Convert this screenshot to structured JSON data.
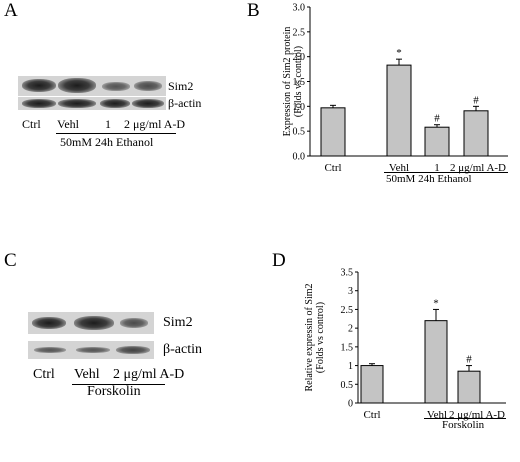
{
  "panel_A": {
    "letter": "A",
    "band_labels": [
      "Sim2",
      "β-actin"
    ],
    "lane_labels": [
      "Ctrl",
      "Vehl",
      "1",
      "2 μg/ml A-D"
    ],
    "treatment": "50mM 24h Ethanol",
    "sim2_band_intensity": [
      0.85,
      1.0,
      0.55,
      0.65
    ],
    "actin_band_intensity": [
      0.9,
      0.95,
      0.9,
      0.9
    ]
  },
  "panel_B": {
    "letter": "B",
    "treatment": "50mM 24h Ethanol",
    "chart_data": {
      "type": "bar",
      "categories": [
        "Ctrl",
        "Vehl",
        "1",
        "2 μg/ml A-D"
      ],
      "values": [
        0.97,
        1.83,
        0.58,
        0.91
      ],
      "errors": [
        0.05,
        0.12,
        0.05,
        0.09
      ],
      "significance": [
        "",
        "*",
        "#",
        "#"
      ],
      "ylabel": "Expression of Sim2 protein (Folds vs control)",
      "ylim": [
        0,
        3.0
      ],
      "yticks": [
        "0.0",
        "0.5",
        "1.0",
        "1.5",
        "2.0",
        "2.5",
        "3.0"
      ],
      "grid": false
    }
  },
  "panel_C": {
    "letter": "C",
    "band_labels": [
      "Sim2",
      "β-actin"
    ],
    "lane_labels": [
      "Ctrl",
      "Vehl",
      "2 μg/ml A-D"
    ],
    "treatment": "Forskolin",
    "sim2_band_intensity": [
      0.8,
      1.0,
      0.6
    ],
    "actin_band_intensity": [
      0.75,
      0.75,
      0.8
    ]
  },
  "panel_D": {
    "letter": "D",
    "treatment": "Forskolin",
    "chart_data": {
      "type": "bar",
      "categories": [
        "Ctrl",
        "Vehl",
        "2 μg/ml A-D"
      ],
      "values": [
        1.0,
        2.2,
        0.85
      ],
      "errors": [
        0.05,
        0.3,
        0.15
      ],
      "significance": [
        "",
        "*",
        "#"
      ],
      "ylabel": "Relative expressin of Sim2 (Folds vs control)",
      "ylim": [
        0,
        3.5
      ],
      "yticks": [
        "0",
        "0.5",
        "1",
        "1.5",
        "2",
        "2.5",
        "3",
        "3.5"
      ],
      "grid": false
    }
  }
}
